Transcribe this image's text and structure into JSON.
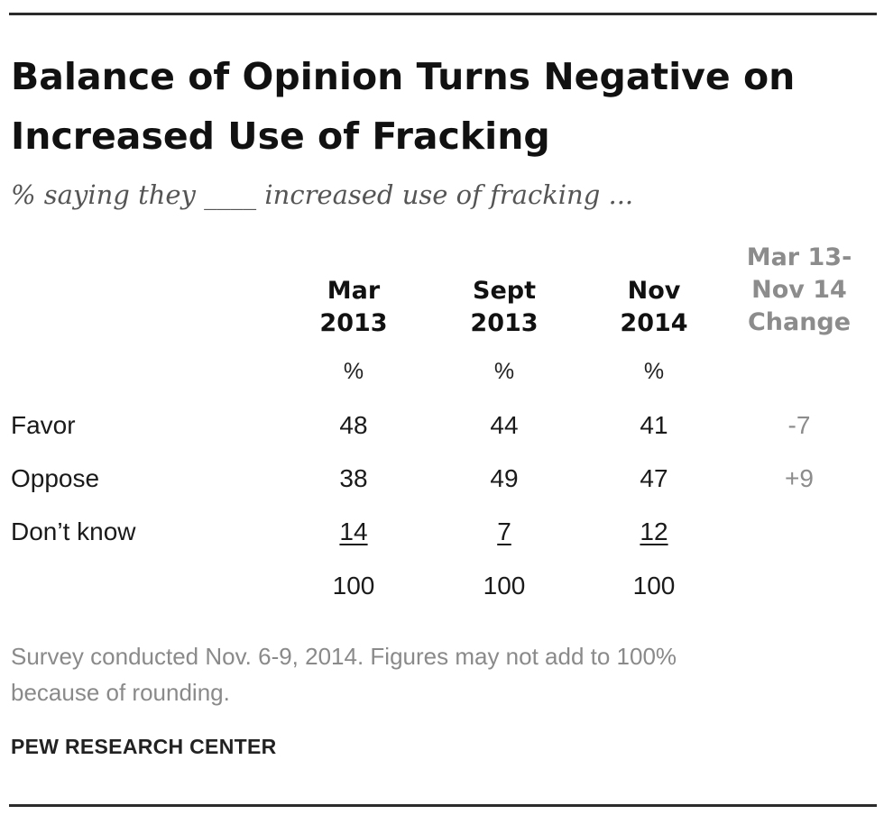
{
  "chart_data": {
    "type": "table",
    "title": "Balance of Opinion Turns Negative on Increased Use of Fracking",
    "title_lines": [
      "Balance of Opinion Turns Negative on",
      "Increased Use of Fracking"
    ],
    "subtitle": "% saying they ____ increased use of fracking ...",
    "columns": [
      {
        "key": "mar2013",
        "label_lines": [
          "Mar",
          "2013"
        ],
        "unit": "%"
      },
      {
        "key": "sept2013",
        "label_lines": [
          "Sept",
          "2013"
        ],
        "unit": "%"
      },
      {
        "key": "nov2014",
        "label_lines": [
          "Nov",
          "2014"
        ],
        "unit": "%"
      },
      {
        "key": "change",
        "label_lines": [
          "Mar 13-",
          "Nov 14",
          "Change"
        ],
        "unit": ""
      }
    ],
    "rows": [
      {
        "label": "Favor",
        "mar2013": "48",
        "sept2013": "44",
        "nov2014": "41",
        "change": "-7"
      },
      {
        "label": "Oppose",
        "mar2013": "38",
        "sept2013": "49",
        "nov2014": "47",
        "change": "+9"
      },
      {
        "label": "Don’t know",
        "mar2013": "14",
        "sept2013": "7",
        "nov2014": "12",
        "change": ""
      }
    ],
    "totals": {
      "mar2013": "100",
      "sept2013": "100",
      "nov2014": "100"
    },
    "note_lines": [
      "Survey conducted Nov. 6-9, 2014. Figures may not add to 100%",
      "because of rounding."
    ],
    "source": "PEW RESEARCH CENTER"
  }
}
